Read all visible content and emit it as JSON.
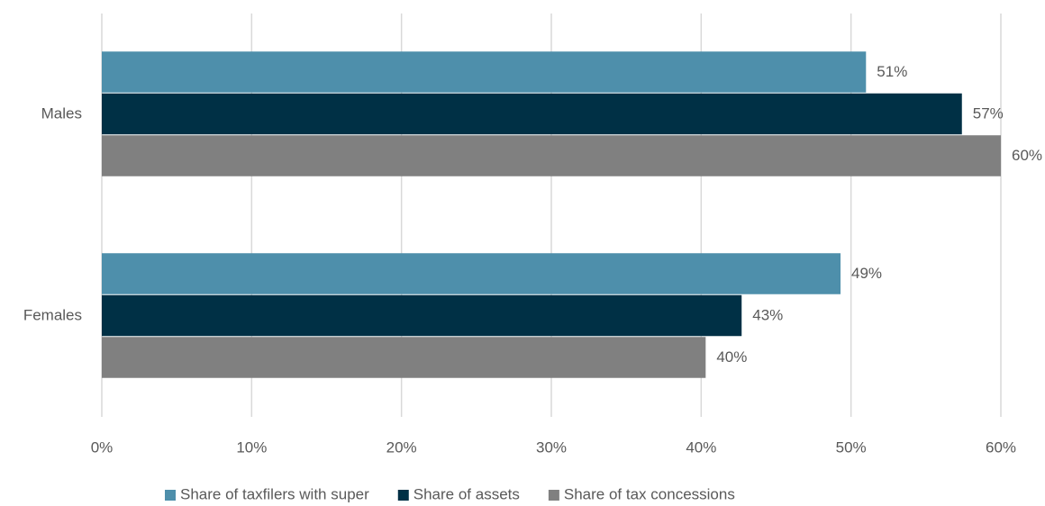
{
  "chart_data": {
    "type": "bar",
    "orientation": "horizontal",
    "categories": [
      "Males",
      "Females"
    ],
    "series": [
      {
        "name": "Share of taxfilers with super",
        "color": "#4e8fab",
        "values": [
          51,
          49.3
        ],
        "value_labels": [
          "51%",
          "49%"
        ]
      },
      {
        "name": "Share of assets",
        "color": "#003045",
        "values": [
          57.4,
          42.7
        ],
        "value_labels": [
          "57%",
          "43%"
        ]
      },
      {
        "name": "Share of tax concessions",
        "color": "#808080",
        "values": [
          60,
          40.3
        ],
        "value_labels": [
          "60%",
          "40%"
        ]
      }
    ],
    "xlim": [
      0,
      60
    ],
    "xticks": [
      {
        "value": 0,
        "label": "0%"
      },
      {
        "value": 10,
        "label": "10%"
      },
      {
        "value": 20,
        "label": "20%"
      },
      {
        "value": 30,
        "label": "30%"
      },
      {
        "value": 40,
        "label": "40%"
      },
      {
        "value": 50,
        "label": "50%"
      },
      {
        "value": 60,
        "label": "60%"
      }
    ],
    "grid": true,
    "legend": "bottom"
  }
}
